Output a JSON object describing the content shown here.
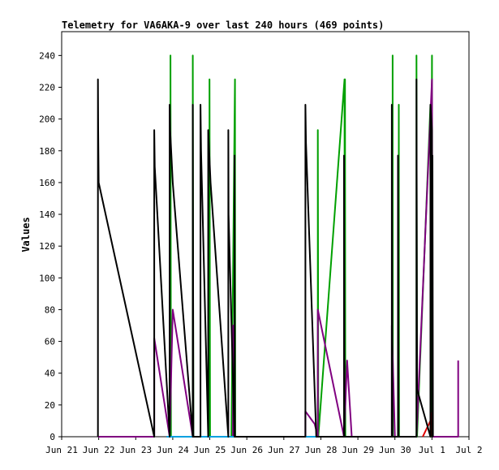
{
  "chart_data": {
    "type": "line",
    "title": "Telemetry for VA6AKA-9 over last 240 hours (469 points)",
    "xlabel": "",
    "ylabel": "Values",
    "xlim": [
      "2025-06-21T00:00",
      "2025-07-02T00:00"
    ],
    "ylim": [
      0,
      255
    ],
    "yticks": [
      0,
      20,
      40,
      60,
      80,
      100,
      120,
      140,
      160,
      180,
      200,
      220,
      240
    ],
    "xticks": [
      {
        "t": "2025-06-21T00:00",
        "label": "Jun 21"
      },
      {
        "t": "2025-06-22T00:00",
        "label": "Jun 22"
      },
      {
        "t": "2025-06-23T00:00",
        "label": "Jun 23"
      },
      {
        "t": "2025-06-24T00:00",
        "label": "Jun 24"
      },
      {
        "t": "2025-06-25T00:00",
        "label": "Jun 25"
      },
      {
        "t": "2025-06-26T00:00",
        "label": "Jun 26"
      },
      {
        "t": "2025-06-27T00:00",
        "label": "Jun 27"
      },
      {
        "t": "2025-06-28T00:00",
        "label": "Jun 28"
      },
      {
        "t": "2025-06-29T00:00",
        "label": "Jun 29"
      },
      {
        "t": "2025-06-30T00:00",
        "label": "Jun 30"
      },
      {
        "t": "2025-07-01T00:00",
        "label": "Jul 1"
      },
      {
        "t": "2025-07-02T00:00",
        "label": "Jul 2"
      }
    ],
    "grid": false,
    "legend": "none",
    "series": [
      {
        "color": "#00a000",
        "points": [
          [
            "2025-06-23T22:30",
            0
          ],
          [
            "2025-06-23T22:30",
            240
          ],
          [
            "2025-06-23T22:50",
            0
          ],
          [
            "2025-06-24T13:00",
            0
          ],
          [
            "2025-06-24T13:00",
            240
          ],
          [
            "2025-06-24T13:20",
            0
          ],
          [
            "2025-06-24T23:50",
            0
          ],
          [
            "2025-06-24T23:50",
            225
          ],
          [
            "2025-06-25T00:10",
            0
          ],
          [
            "2025-06-25T14:00",
            0
          ],
          [
            "2025-06-25T16:20",
            225
          ],
          [
            "2025-06-25T16:30",
            0
          ],
          [
            "2025-06-27T22:00",
            0
          ],
          [
            "2025-06-27T22:00",
            193
          ],
          [
            "2025-06-27T22:20",
            0
          ],
          [
            "2025-06-28T15:20",
            225
          ],
          [
            "2025-06-28T15:30",
            0
          ],
          [
            "2025-06-28T15:40",
            225
          ],
          [
            "2025-06-28T15:50",
            0
          ],
          [
            "2025-06-29T22:30",
            0
          ],
          [
            "2025-06-29T22:30",
            240
          ],
          [
            "2025-06-29T22:40",
            0
          ],
          [
            "2025-06-30T02:30",
            0
          ],
          [
            "2025-06-30T02:30",
            209
          ],
          [
            "2025-06-30T02:40",
            0
          ],
          [
            "2025-06-30T14:00",
            0
          ],
          [
            "2025-06-30T14:00",
            240
          ],
          [
            "2025-06-30T14:20",
            0
          ],
          [
            "2025-06-30T23:00",
            209
          ],
          [
            "2025-06-30T23:10",
            0
          ],
          [
            "2025-07-01T00:00",
            240
          ],
          [
            "2025-07-01T00:10",
            0
          ]
        ]
      },
      {
        "color": "#800080",
        "points": [
          [
            "2025-06-21T23:30",
            0
          ],
          [
            "2025-06-23T12:00",
            0
          ],
          [
            "2025-06-23T12:00",
            62
          ],
          [
            "2025-06-23T22:00",
            0
          ],
          [
            "2025-06-24T00:00",
            80
          ],
          [
            "2025-06-24T13:00",
            0
          ],
          [
            "2025-06-25T15:00",
            0
          ],
          [
            "2025-06-25T15:10",
            70
          ],
          [
            "2025-06-25T15:30",
            0
          ],
          [
            "2025-06-27T14:00",
            0
          ],
          [
            "2025-06-27T14:00",
            16
          ],
          [
            "2025-06-27T20:00",
            8
          ],
          [
            "2025-06-27T22:00",
            0
          ],
          [
            "2025-06-27T22:00",
            80
          ],
          [
            "2025-06-28T15:00",
            0
          ],
          [
            "2025-06-28T17:00",
            48
          ],
          [
            "2025-06-28T20:00",
            0
          ],
          [
            "2025-06-29T22:00",
            0
          ],
          [
            "2025-06-29T22:00",
            70
          ],
          [
            "2025-06-30T00:00",
            0
          ],
          [
            "2025-06-30T14:00",
            0
          ],
          [
            "2025-07-01T00:00",
            225
          ],
          [
            "2025-07-01T00:30",
            0
          ],
          [
            "2025-07-01T17:00",
            0
          ],
          [
            "2025-07-01T17:00",
            48
          ]
        ]
      },
      {
        "color": "#e00000",
        "points": [
          [
            "2025-06-30T18:00",
            0
          ],
          [
            "2025-06-30T23:00",
            10
          ],
          [
            "2025-07-01T00:00",
            15
          ],
          [
            "2025-07-01T00:10",
            0
          ]
        ]
      },
      {
        "color": "#00a0e0",
        "points": [
          [
            "2025-06-23T20:00",
            0
          ],
          [
            "2025-06-24T00:00",
            0
          ],
          [
            "2025-06-27T14:00",
            0
          ],
          [
            "2025-06-27T23:00",
            0
          ]
        ]
      },
      {
        "color": "#000000",
        "points": [
          [
            "2025-06-21T23:30",
            0
          ],
          [
            "2025-06-21T23:30",
            225
          ],
          [
            "2025-06-21T23:40",
            193
          ],
          [
            "2025-06-22T00:00",
            160
          ],
          [
            "2025-06-23T12:00",
            0
          ],
          [
            "2025-06-23T12:00",
            193
          ],
          [
            "2025-06-23T12:20",
            170
          ],
          [
            "2025-06-23T22:00",
            0
          ],
          [
            "2025-06-23T22:00",
            209
          ],
          [
            "2025-06-23T22:20",
            193
          ],
          [
            "2025-06-24T00:00",
            160
          ],
          [
            "2025-06-24T13:00",
            0
          ],
          [
            "2025-06-24T13:00",
            209
          ],
          [
            "2025-06-24T13:20",
            0
          ],
          [
            "2025-06-24T18:00",
            0
          ],
          [
            "2025-06-24T18:00",
            209
          ],
          [
            "2025-06-24T18:20",
            180
          ],
          [
            "2025-06-24T23:00",
            0
          ],
          [
            "2025-06-24T23:00",
            193
          ],
          [
            "2025-06-25T00:30",
            160
          ],
          [
            "2025-06-25T12:00",
            0
          ],
          [
            "2025-06-25T12:00",
            193
          ],
          [
            "2025-06-25T12:10",
            140
          ],
          [
            "2025-06-25T16:00",
            0
          ],
          [
            "2025-06-25T16:00",
            177
          ],
          [
            "2025-06-25T16:20",
            0
          ],
          [
            "2025-06-27T14:00",
            0
          ],
          [
            "2025-06-27T14:00",
            209
          ],
          [
            "2025-06-27T14:20",
            185
          ],
          [
            "2025-06-27T21:00",
            0
          ],
          [
            "2025-06-27T21:20",
            0
          ],
          [
            "2025-06-28T15:00",
            0
          ],
          [
            "2025-06-28T15:00",
            177
          ],
          [
            "2025-06-28T15:20",
            0
          ],
          [
            "2025-06-29T22:00",
            0
          ],
          [
            "2025-06-29T22:00",
            209
          ],
          [
            "2025-06-29T22:20",
            0
          ],
          [
            "2025-06-30T02:00",
            0
          ],
          [
            "2025-06-30T02:00",
            177
          ],
          [
            "2025-06-30T02:20",
            0
          ],
          [
            "2025-06-30T14:00",
            0
          ],
          [
            "2025-06-30T14:00",
            225
          ],
          [
            "2025-06-30T14:20",
            30
          ],
          [
            "2025-06-30T23:00",
            0
          ],
          [
            "2025-06-30T23:00",
            209
          ],
          [
            "2025-07-01T00:00",
            193
          ],
          [
            "2025-07-01T00:10",
            0
          ],
          [
            "2025-07-01T00:20",
            177
          ],
          [
            "2025-07-01T00:40",
            0
          ]
        ]
      }
    ]
  }
}
